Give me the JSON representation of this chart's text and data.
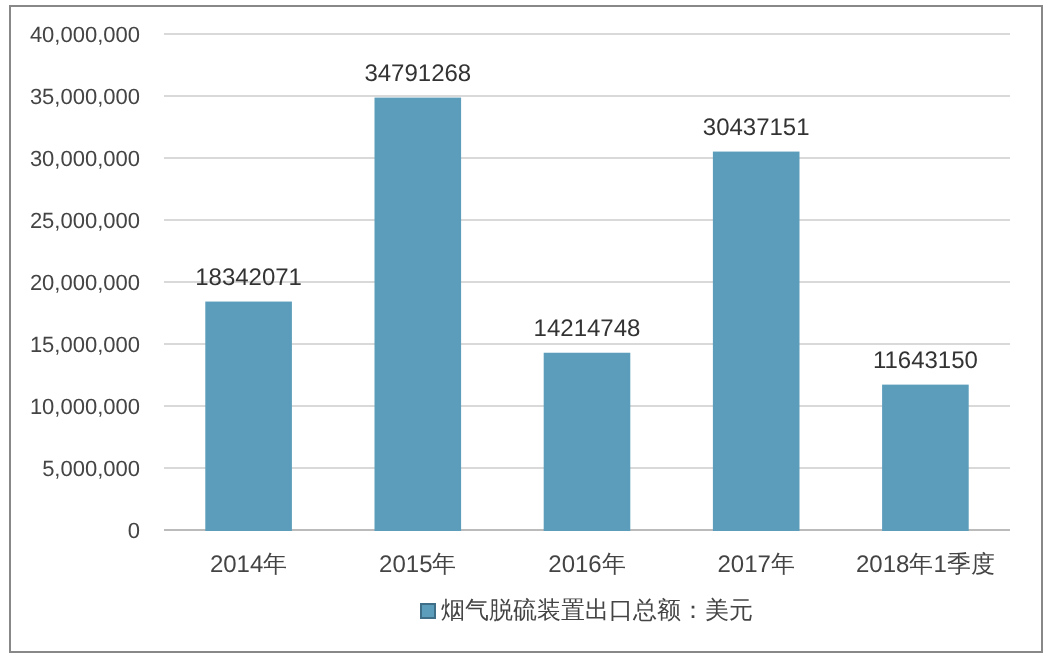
{
  "chart_data": {
    "type": "bar",
    "categories": [
      "2014年",
      "2015年",
      "2016年",
      "2017年",
      "2018年1季度"
    ],
    "series": [
      {
        "name": "烟气脱硫装置出口总额：美元",
        "color": "#5b9dbb",
        "values": [
          18342071,
          34791268,
          14214748,
          30437151,
          11643150
        ]
      }
    ],
    "ylim": [
      0,
      40000000
    ],
    "yticks": [
      0,
      {
        "value": 5000000,
        "label": "5,000,000"
      },
      {
        "value": 10000000,
        "label": "10,000,000"
      },
      {
        "value": 15000000,
        "label": "15,000,000"
      },
      {
        "value": 20000000,
        "label": "20,000,000"
      },
      {
        "value": 25000000,
        "label": "25,000,000"
      },
      {
        "value": 30000000,
        "label": "30,000,000"
      },
      {
        "value": 35000000,
        "label": "35,000,000"
      },
      {
        "value": 40000000,
        "label": "40,000,000"
      }
    ],
    "grid": "y",
    "legend": "bottom",
    "data_labels": true
  }
}
